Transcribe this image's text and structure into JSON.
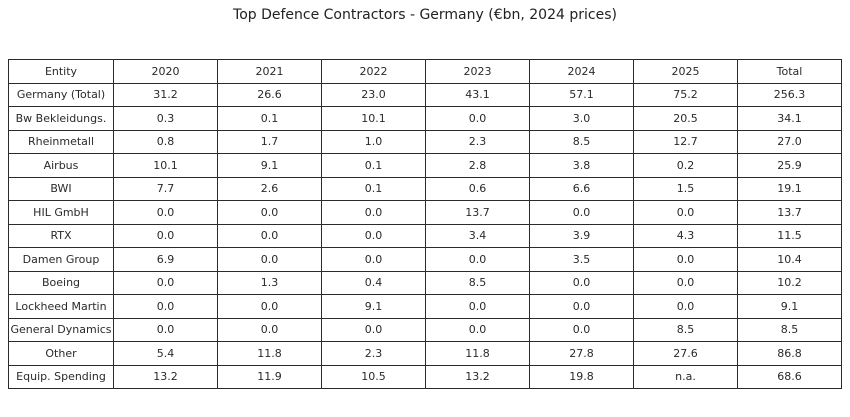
{
  "title": "Top Defence Contractors - Germany (€bn, 2024 prices)",
  "table": {
    "headers": [
      "Entity",
      "2020",
      "2021",
      "2022",
      "2023",
      "2024",
      "2025",
      "Total"
    ],
    "rows": [
      [
        "Germany (Total)",
        "31.2",
        "26.6",
        "23.0",
        "43.1",
        "57.1",
        "75.2",
        "256.3"
      ],
      [
        "Bw Bekleidungs.",
        "0.3",
        "0.1",
        "10.1",
        "0.0",
        "3.0",
        "20.5",
        "34.1"
      ],
      [
        "Rheinmetall",
        "0.8",
        "1.7",
        "1.0",
        "2.3",
        "8.5",
        "12.7",
        "27.0"
      ],
      [
        "Airbus",
        "10.1",
        "9.1",
        "0.1",
        "2.8",
        "3.8",
        "0.2",
        "25.9"
      ],
      [
        "BWI",
        "7.7",
        "2.6",
        "0.1",
        "0.6",
        "6.6",
        "1.5",
        "19.1"
      ],
      [
        "HIL GmbH",
        "0.0",
        "0.0",
        "0.0",
        "13.7",
        "0.0",
        "0.0",
        "13.7"
      ],
      [
        "RTX",
        "0.0",
        "0.0",
        "0.0",
        "3.4",
        "3.9",
        "4.3",
        "11.5"
      ],
      [
        "Damen Group",
        "6.9",
        "0.0",
        "0.0",
        "0.0",
        "3.5",
        "0.0",
        "10.4"
      ],
      [
        "Boeing",
        "0.0",
        "1.3",
        "0.4",
        "8.5",
        "0.0",
        "0.0",
        "10.2"
      ],
      [
        "Lockheed Martin",
        "0.0",
        "0.0",
        "9.1",
        "0.0",
        "0.0",
        "0.0",
        "9.1"
      ],
      [
        "General Dynamics",
        "0.0",
        "0.0",
        "0.0",
        "0.0",
        "0.0",
        "8.5",
        "8.5"
      ],
      [
        "Other",
        "5.4",
        "11.8",
        "2.3",
        "11.8",
        "27.8",
        "27.6",
        "86.8"
      ],
      [
        "Equip. Spending",
        "13.2",
        "11.9",
        "10.5",
        "13.2",
        "19.8",
        "n.a.",
        "68.6"
      ]
    ]
  },
  "colors": {
    "border": "#2b2b2b",
    "text": "#222222",
    "background": "#ffffff"
  }
}
